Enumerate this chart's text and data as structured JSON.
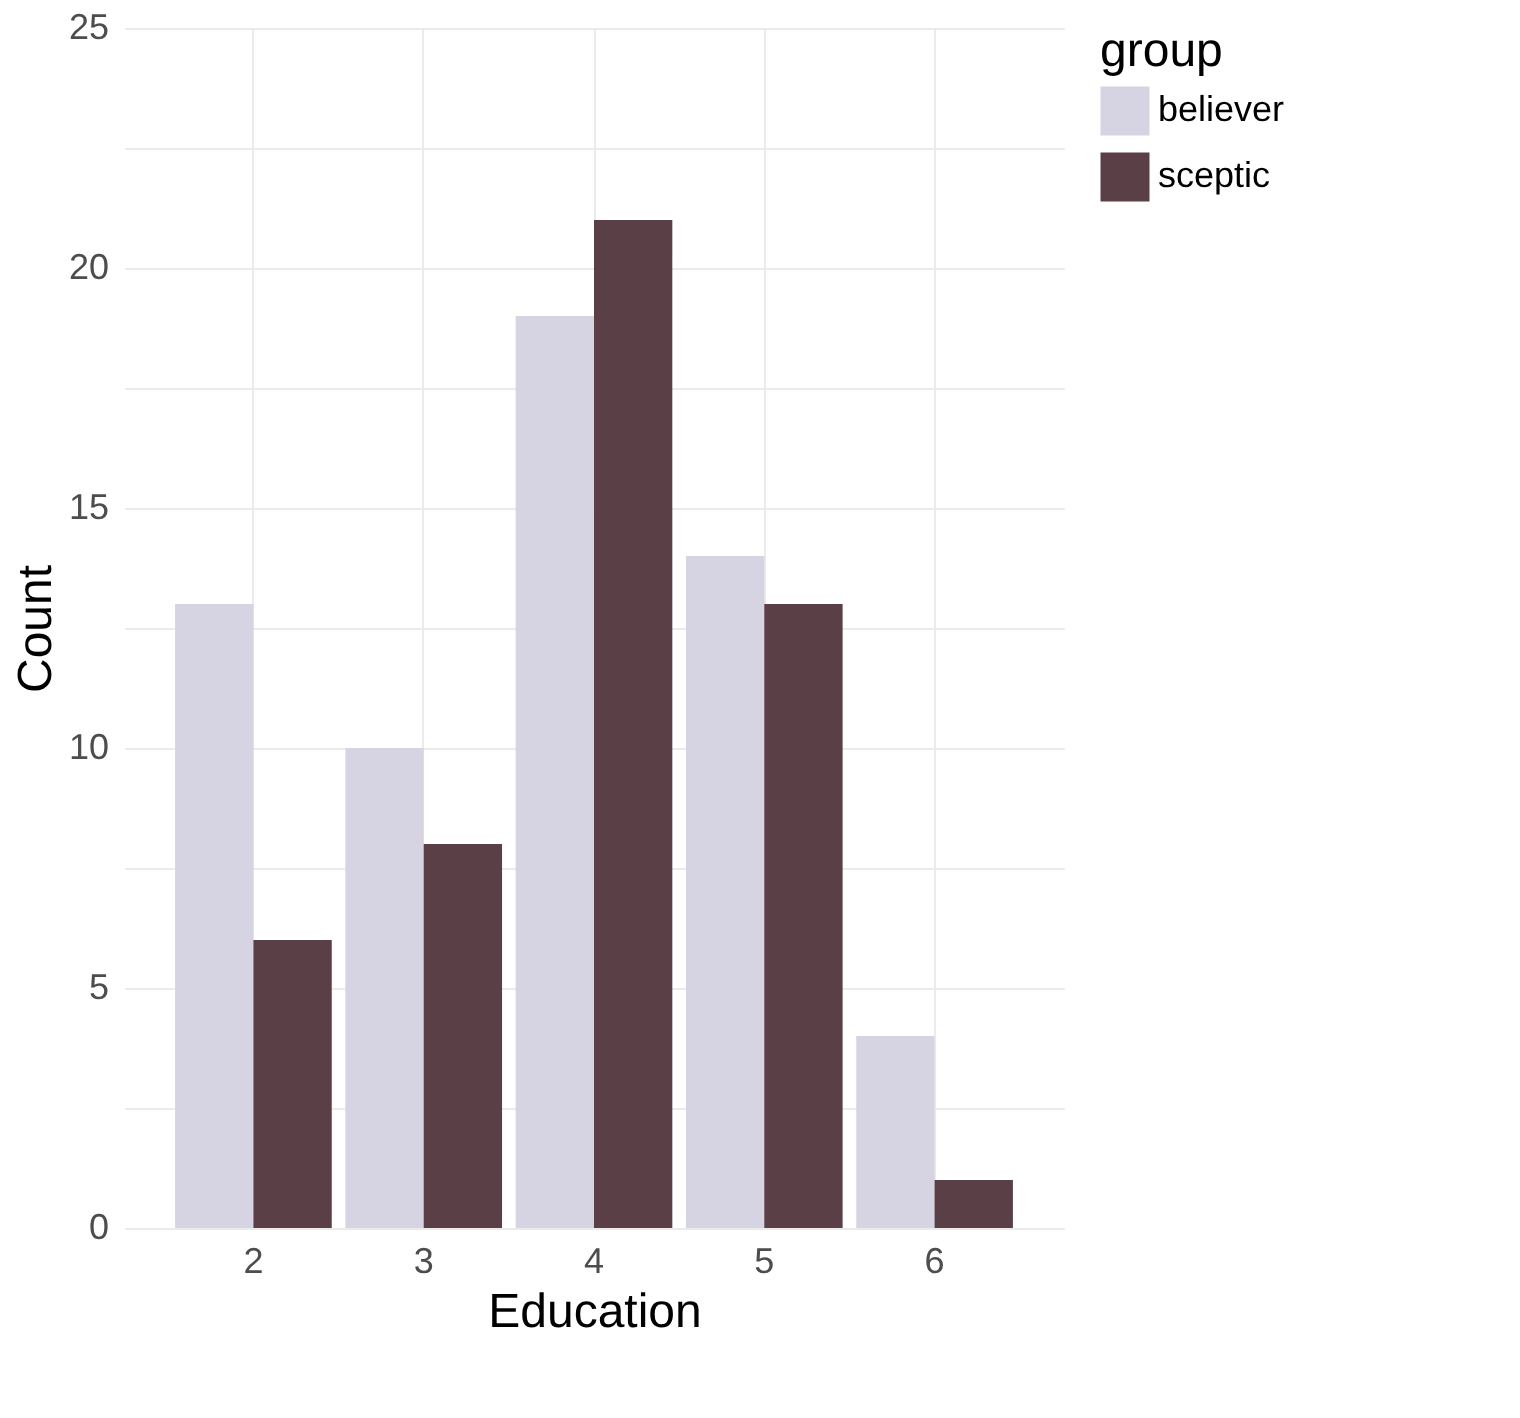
{
  "chart_data": {
    "type": "bar",
    "xlabel": "Education",
    "ylabel": "Count",
    "legend_title": "group",
    "categories": [
      "2",
      "3",
      "4",
      "5",
      "6"
    ],
    "series": [
      {
        "name": "believer",
        "color": "#d6d4e2",
        "values": [
          13,
          10,
          19,
          14,
          4
        ]
      },
      {
        "name": "sceptic",
        "color": "#5a3f47",
        "values": [
          6,
          8,
          21,
          13,
          1
        ]
      }
    ],
    "ylim": [
      0,
      25
    ],
    "yticks": [
      0,
      {
        "value": 2.5,
        "label": null
      },
      5,
      {
        "value": 7.5,
        "label": null
      },
      10,
      {
        "value": 12.5,
        "label": null
      },
      15,
      {
        "value": 17.5,
        "label": null
      },
      20,
      {
        "value": 22.5,
        "label": null
      },
      25
    ],
    "grid": true,
    "legend": "right"
  }
}
